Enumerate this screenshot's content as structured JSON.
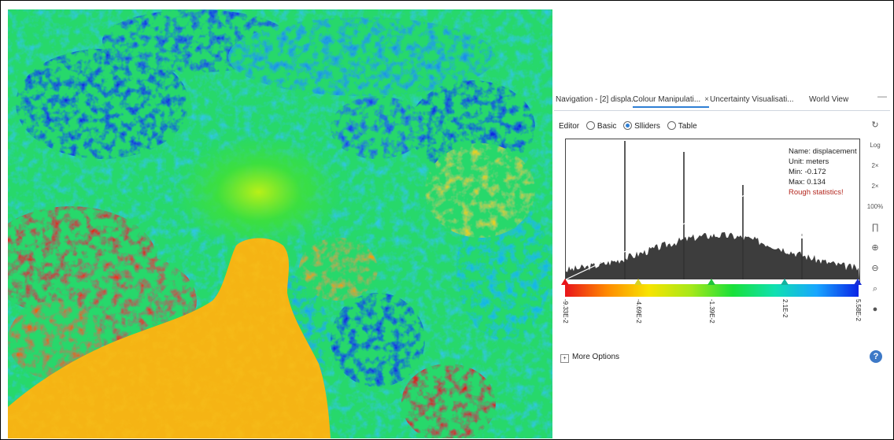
{
  "tabs": [
    {
      "label": "Navigation - [2] displa...",
      "active": false,
      "closable": false
    },
    {
      "label": "Colour Manipulati...",
      "active": true,
      "closable": true
    },
    {
      "label": "Uncertainty Visualisati...",
      "active": false,
      "closable": false
    },
    {
      "label": "World View",
      "active": false,
      "closable": false
    }
  ],
  "tab_close_glyph": "×",
  "editor": {
    "label": "Editor",
    "options": [
      {
        "label": "Basic",
        "selected": false
      },
      {
        "label": "Slliders",
        "selected": true
      },
      {
        "label": "Table",
        "selected": false
      }
    ]
  },
  "stats": {
    "name": "Name: displacement",
    "unit": "Unit: meters",
    "min": "Min: -0.172",
    "max": "Max: 0.134",
    "note": "Rough statistics!"
  },
  "color_scale": {
    "stops": [
      "#e8141b",
      "#ff8a00",
      "#f7e400",
      "#a6e81a",
      "#19e03a",
      "#10e0b0",
      "#18a6ff",
      "#0a24e6"
    ],
    "tick_labels": [
      "-9.33E-2",
      "-4.69E-2",
      "-1.39E-2",
      "2.1E-2",
      "5.58E-2"
    ],
    "slider_colors": [
      "#e8141b",
      "#d7d226",
      "#21c53a",
      "#14b3a0",
      "#1a2fd6"
    ]
  },
  "toolbar_icons": [
    "reset-icon",
    "log-scale-icon",
    "fit-2x-left-icon",
    "fit-2x-right-icon",
    "fit-100-icon",
    "histogram-bins-icon",
    "zoom-in-icon",
    "zoom-out-icon",
    "zoom-select-icon",
    "globe-icon"
  ],
  "toolbar_glyphs": [
    "↻",
    "Log",
    "2×",
    "2×",
    "100%",
    "∏",
    "⊕",
    "⊖",
    "⌕",
    "●"
  ],
  "more_options": {
    "label": "More Options",
    "glyph": "+"
  },
  "help_glyph": "?"
}
